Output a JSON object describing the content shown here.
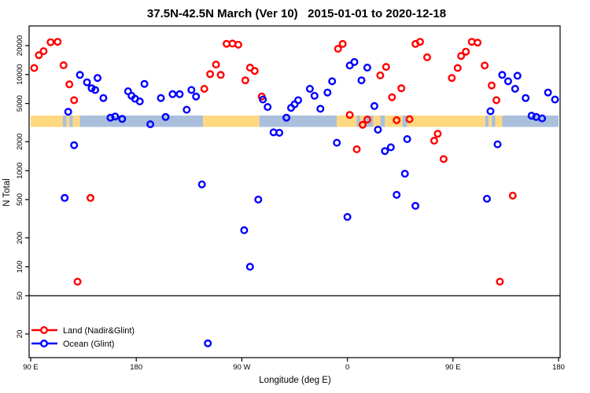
{
  "title": "37.5N-42.5N March (Ver 10)   2015-01-01 to 2020-12-18",
  "axes": {
    "x": {
      "label": "Longitude (deg E)",
      "ticks": [
        {
          "value": 90,
          "label": "90 E"
        },
        {
          "value": 180,
          "label": "180"
        },
        {
          "value": 270,
          "label": "90 W"
        },
        {
          "value": 360,
          "label": "0"
        },
        {
          "value": 450,
          "label": "90 E"
        },
        {
          "value": 540,
          "label": "180"
        }
      ],
      "span_axis_deg": [
        90,
        540
      ]
    },
    "y": {
      "label": "N Total",
      "scale": "log",
      "ticks": [
        "20",
        "50",
        "100",
        "200",
        "500",
        "1000",
        "2000",
        "5000",
        "10000",
        "20000"
      ],
      "range": [
        12,
        32000
      ]
    }
  },
  "legend": [
    {
      "label": "Land (Nadir&Glint)",
      "color": "#ff0000"
    },
    {
      "label": "Ocean (Glint)",
      "color": "#0000ff"
    }
  ],
  "threshold_line": {
    "value": 50,
    "color": "#000000"
  },
  "map_strip": {
    "value_range": [
      2950,
      3800
    ],
    "land_color": "#ffd880",
    "ocean_color": "#a9bfdb",
    "segments": [
      {
        "from": 90,
        "to": 117.5,
        "type": "land"
      },
      {
        "from": 117.5,
        "to": 120.5,
        "type": "ocean"
      },
      {
        "from": 120.5,
        "to": 123,
        "type": "land"
      },
      {
        "from": 123,
        "to": 126,
        "type": "ocean"
      },
      {
        "from": 126,
        "to": 132,
        "type": "land"
      },
      {
        "from": 132,
        "to": 237,
        "type": "ocean"
      },
      {
        "from": 237,
        "to": 285,
        "type": "land"
      },
      {
        "from": 285,
        "to": 351,
        "type": "ocean"
      },
      {
        "from": 351,
        "to": 368,
        "type": "land"
      },
      {
        "from": 368,
        "to": 371,
        "type": "ocean"
      },
      {
        "from": 371,
        "to": 375,
        "type": "land"
      },
      {
        "from": 375,
        "to": 382,
        "type": "ocean"
      },
      {
        "from": 382,
        "to": 388,
        "type": "land"
      },
      {
        "from": 388,
        "to": 392,
        "type": "ocean"
      },
      {
        "from": 392,
        "to": 407,
        "type": "land"
      },
      {
        "from": 407,
        "to": 411,
        "type": "ocean"
      },
      {
        "from": 411,
        "to": 477.5,
        "type": "land"
      },
      {
        "from": 477.5,
        "to": 480.5,
        "type": "ocean"
      },
      {
        "from": 480.5,
        "to": 483,
        "type": "land"
      },
      {
        "from": 483,
        "to": 486,
        "type": "ocean"
      },
      {
        "from": 486,
        "to": 492,
        "type": "land"
      },
      {
        "from": 492,
        "to": 540,
        "type": "ocean"
      }
    ]
  },
  "chart_data": {
    "type": "scatter",
    "x_is_axis_longitude_deg": true,
    "xlabel": "Longitude (deg E)",
    "ylabel": "N Total",
    "series": [
      {
        "name": "Land (Nadir&Glint)",
        "color": "#ff0000",
        "points": [
          [
            93,
            11700
          ],
          [
            97,
            15900
          ],
          [
            101,
            17500
          ],
          [
            107,
            21700
          ],
          [
            113,
            21900
          ],
          [
            118,
            12500
          ],
          [
            123,
            7900
          ],
          [
            127,
            5400
          ],
          [
            130,
            70
          ],
          [
            141,
            520
          ],
          [
            238,
            7100
          ],
          [
            243,
            10100
          ],
          [
            248,
            12700
          ],
          [
            252,
            9900
          ],
          [
            257,
            20900
          ],
          [
            262,
            21000
          ],
          [
            267,
            20400
          ],
          [
            273,
            8700
          ],
          [
            277,
            11800
          ],
          [
            281,
            10900
          ],
          [
            287,
            5900
          ],
          [
            352,
            18500
          ],
          [
            356,
            20800
          ],
          [
            362,
            3800
          ],
          [
            368,
            1670
          ],
          [
            373,
            3000
          ],
          [
            377,
            3400
          ],
          [
            388,
            9800
          ],
          [
            393,
            12000
          ],
          [
            398,
            5800
          ],
          [
            402,
            3350
          ],
          [
            406,
            7200
          ],
          [
            413,
            3430
          ],
          [
            418,
            20800
          ],
          [
            422,
            21900
          ],
          [
            428,
            15100
          ],
          [
            434,
            2050
          ],
          [
            437,
            2420
          ],
          [
            442,
            1320
          ],
          [
            449,
            9200
          ],
          [
            454,
            11700
          ],
          [
            457,
            15600
          ],
          [
            461,
            17300
          ],
          [
            466,
            21900
          ],
          [
            471,
            21500
          ],
          [
            477,
            12400
          ],
          [
            483,
            7700
          ],
          [
            487,
            5400
          ],
          [
            490,
            70
          ],
          [
            501,
            550
          ]
        ]
      },
      {
        "name": "Ocean (Glint)",
        "color": "#0000ff",
        "points": [
          [
            119,
            520
          ],
          [
            122,
            4100
          ],
          [
            127,
            1840
          ],
          [
            132,
            9900
          ],
          [
            138,
            8300
          ],
          [
            142,
            7200
          ],
          [
            145,
            6900
          ],
          [
            147,
            9200
          ],
          [
            152,
            5700
          ],
          [
            158,
            3560
          ],
          [
            162,
            3660
          ],
          [
            168,
            3450
          ],
          [
            173,
            6700
          ],
          [
            176,
            6000
          ],
          [
            179,
            5600
          ],
          [
            183,
            5250
          ],
          [
            187,
            8000
          ],
          [
            192,
            3040
          ],
          [
            201,
            5700
          ],
          [
            205,
            3620
          ],
          [
            211,
            6250
          ],
          [
            217,
            6250
          ],
          [
            223,
            4300
          ],
          [
            227,
            6900
          ],
          [
            231,
            5900
          ],
          [
            236,
            720
          ],
          [
            241,
            16
          ],
          [
            272,
            240
          ],
          [
            277,
            100
          ],
          [
            284,
            500
          ],
          [
            288,
            5500
          ],
          [
            292,
            4600
          ],
          [
            297,
            2500
          ],
          [
            302,
            2480
          ],
          [
            308,
            3560
          ],
          [
            312,
            4500
          ],
          [
            315,
            4900
          ],
          [
            318,
            5400
          ],
          [
            328,
            7100
          ],
          [
            332,
            6000
          ],
          [
            337,
            4400
          ],
          [
            343,
            6500
          ],
          [
            347,
            8500
          ],
          [
            351,
            1950
          ],
          [
            360,
            330
          ],
          [
            362,
            12400
          ],
          [
            366,
            13500
          ],
          [
            372,
            8700
          ],
          [
            377,
            11800
          ],
          [
            383,
            4700
          ],
          [
            386,
            2670
          ],
          [
            392,
            1600
          ],
          [
            397,
            1750
          ],
          [
            402,
            560
          ],
          [
            409,
            930
          ],
          [
            411,
            2130
          ],
          [
            418,
            430
          ],
          [
            479,
            510
          ],
          [
            482,
            4150
          ],
          [
            488,
            1880
          ],
          [
            492,
            9900
          ],
          [
            497,
            8500
          ],
          [
            503,
            7100
          ],
          [
            505,
            9700
          ],
          [
            512,
            5700
          ],
          [
            517,
            3730
          ],
          [
            521,
            3620
          ],
          [
            526,
            3500
          ],
          [
            531,
            6500
          ],
          [
            537,
            5500
          ]
        ]
      }
    ]
  }
}
